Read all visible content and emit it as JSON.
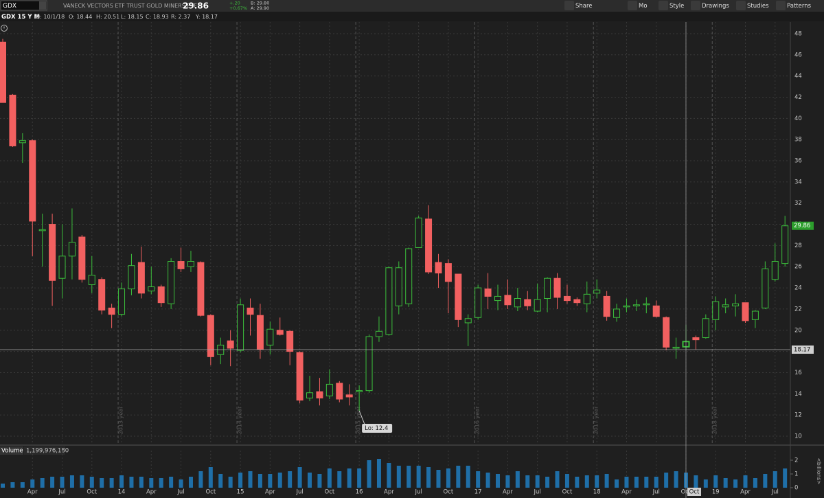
{
  "header": {
    "symbol": "GDX",
    "name": "VANECK VECTORS ETF TRUST GOLD MINERS ETF",
    "last": "29.86",
    "change": "+.20",
    "change_pct": "+0.67%",
    "bid": "B: 29.80",
    "ask": "A: 29.90",
    "buttons": [
      "Share",
      "Mo",
      "Style",
      "Drawings",
      "Studies",
      "Patterns"
    ],
    "chart_label": "GDX 15 Y M",
    "info": [
      "D: 10/1/18",
      "O: 18.44",
      "H: 20.51",
      "L: 18.15",
      "C: 18.93",
      "R: 2.37",
      "Y: 18.17"
    ]
  },
  "chart_data": [
    {
      "type": "candlestick",
      "categories": [
        null,
        null,
        null,
        "Apr",
        null,
        null,
        "Jul",
        null,
        null,
        "Oct",
        null,
        null,
        "14",
        null,
        null,
        "Apr",
        null,
        null,
        "Jul",
        null,
        null,
        "Oct",
        null,
        null,
        "15",
        null,
        null,
        "Apr",
        null,
        null,
        "Jul",
        null,
        null,
        "Oct",
        null,
        null,
        "16",
        null,
        null,
        "Apr",
        null,
        null,
        "Jul",
        null,
        null,
        "Oct",
        null,
        null,
        "17",
        null,
        null,
        "Apr",
        null,
        null,
        "Jul",
        null,
        null,
        "Oct",
        null,
        null,
        "18",
        null,
        null,
        "Apr",
        null,
        null,
        "Jul",
        null,
        null,
        "Oct",
        null,
        null,
        "19",
        null,
        null,
        "Apr",
        null,
        null,
        "Jul",
        null
      ],
      "open": [
        47.2,
        42.2,
        37.7,
        37.9,
        29.4,
        30,
        24.9,
        27,
        28.8,
        24.3,
        24.8,
        22.1,
        21.5,
        23.9,
        26.4,
        23.7,
        24.1,
        22.5,
        26.5,
        26,
        26.4,
        21.4,
        17.7,
        19,
        18.1,
        22.1,
        21.4,
        18.6,
        20,
        19.9,
        17.9,
        13.6,
        14.2,
        13.8,
        15,
        13.9,
        14.2,
        14.3,
        19.4,
        19.6,
        22.3,
        22.5,
        27.8,
        30.5,
        26.4,
        26.3,
        25.3,
        20.7,
        21.2,
        23.9,
        22.8,
        23.3,
        22.2,
        22.9,
        21.8,
        23,
        24.9,
        23.2,
        22.9,
        22.5,
        23.5,
        23.2,
        21.2,
        22.2,
        22.3,
        22.4,
        22.3,
        21.2,
        18.3,
        18.44,
        19.3,
        19.3,
        21,
        22.2,
        22.3,
        22.6,
        21,
        22.1,
        24.8,
        26.3
      ],
      "high": [
        47.5,
        42.3,
        38.6,
        38,
        31,
        31,
        30,
        31.5,
        29,
        27,
        25,
        22.5,
        24.5,
        27.2,
        27.9,
        26,
        24.3,
        26.8,
        27.8,
        27.5,
        26.5,
        21.5,
        19.3,
        20,
        23,
        23,
        22.5,
        20.8,
        21.2,
        20,
        18,
        15.7,
        15.5,
        16.3,
        15.2,
        14.9,
        14.8,
        19.6,
        21.3,
        26,
        26.5,
        27.8,
        30.8,
        31.8,
        27.2,
        26.7,
        25.3,
        21.5,
        24.3,
        25.4,
        24.3,
        24.8,
        24,
        23.7,
        24.4,
        25,
        25.4,
        24.3,
        23.1,
        24.6,
        24.8,
        23.7,
        22.5,
        23,
        22.9,
        23.1,
        22.8,
        21.3,
        19.3,
        20.51,
        19.5,
        21.5,
        23.2,
        23,
        23.4,
        22.6,
        21.9,
        26.5,
        28.2,
        30.8
      ],
      "low": [
        41.5,
        37.3,
        35.8,
        27,
        26,
        22.3,
        23,
        24.8,
        24.5,
        23.5,
        21.5,
        20.2,
        21.3,
        23.3,
        23,
        23.4,
        22.2,
        22,
        25.5,
        25.5,
        21.3,
        16.7,
        16.8,
        16.6,
        17.9,
        19.5,
        17.3,
        17.7,
        19.5,
        16.7,
        13.1,
        13.3,
        12.9,
        13.5,
        13.2,
        12.9,
        12.4,
        14.1,
        18.9,
        19.5,
        21.5,
        22.2,
        27.8,
        25.3,
        24,
        21.6,
        20.3,
        18.5,
        21,
        22,
        21.9,
        22,
        21.8,
        21.9,
        21.7,
        21.7,
        22,
        22.5,
        22.3,
        21.7,
        23,
        20.9,
        20.8,
        21.7,
        21.8,
        21.6,
        21.2,
        18.1,
        17.3,
        18.15,
        18.2,
        19.2,
        20,
        21.6,
        21.3,
        20.7,
        20.2,
        22,
        24.6,
        26
      ],
      "close": [
        41.5,
        37.4,
        37.9,
        30.3,
        29.5,
        24.7,
        27,
        28.3,
        24.8,
        25.2,
        21.9,
        21.5,
        23.9,
        26.1,
        23.5,
        24.1,
        22.6,
        26.5,
        25.8,
        26.5,
        21.4,
        17.5,
        18.6,
        18.3,
        22.4,
        21.5,
        18.2,
        20.1,
        19.6,
        18,
        13.4,
        14.1,
        13.6,
        14.9,
        13.5,
        13.7,
        14.3,
        19.4,
        19.9,
        25.9,
        25.9,
        27.7,
        30.6,
        25.5,
        25.4,
        24.6,
        21,
        21.1,
        24,
        23.2,
        23.2,
        22.4,
        23,
        22.3,
        22.9,
        24.9,
        23.1,
        22.8,
        22.6,
        23.4,
        23.8,
        21.3,
        22,
        22.3,
        22.4,
        22.5,
        21.3,
        18.4,
        18.4,
        18.93,
        19.1,
        21.1,
        22.7,
        22.4,
        22.5,
        20.9,
        21.8,
        25.8,
        26.5,
        29.86
      ],
      "up_color": "#3cbf3c",
      "down_color": "#f26060",
      "ylim": [
        9.35,
        49.1
      ],
      "yticks": [
        10,
        12,
        14,
        16,
        18,
        20,
        22,
        24,
        26,
        28,
        30,
        32,
        34,
        36,
        38,
        40,
        42,
        44,
        46,
        48
      ],
      "grid": true,
      "year_markers": [
        "2013 year",
        "2014 year",
        "2015 year",
        "2016 year",
        "2017 year",
        "2018 year"
      ],
      "annotation": "Lo: 12.4",
      "crosshair": {
        "value": 18.17,
        "category_label": "Oct"
      }
    },
    {
      "type": "bar",
      "title": "Volume",
      "value_text": "1,199,976,180",
      "y_label": "<billions>",
      "color": "#1f6fa8",
      "values": [
        0.3,
        0.4,
        0.4,
        0.6,
        0.7,
        0.8,
        0.8,
        0.9,
        0.9,
        0.8,
        0.7,
        0.7,
        0.9,
        0.8,
        0.8,
        0.7,
        0.7,
        0.8,
        0.6,
        0.8,
        1.2,
        1.5,
        1.0,
        0.8,
        1.1,
        1.2,
        1.0,
        1.0,
        1.1,
        1.2,
        1.5,
        1.1,
        1.0,
        1.4,
        1.2,
        1.4,
        1.4,
        2.0,
        2.1,
        1.8,
        1.6,
        1.6,
        1.6,
        1.5,
        1.3,
        1.4,
        1.6,
        1.6,
        1.2,
        1.1,
        1.0,
        0.9,
        1.2,
        0.9,
        0.9,
        0.8,
        1.2,
        1.0,
        0.8,
        0.9,
        0.9,
        1.0,
        0.6,
        0.8,
        0.8,
        0.8,
        0.8,
        1.1,
        1.2,
        1.1,
        0.9,
        0.6,
        0.9,
        0.7,
        0.6,
        0.9,
        0.7,
        1.0,
        1.2,
        1.4
      ],
      "ylim": [
        0,
        2.4
      ],
      "yticks": [
        0,
        1,
        2
      ]
    }
  ]
}
